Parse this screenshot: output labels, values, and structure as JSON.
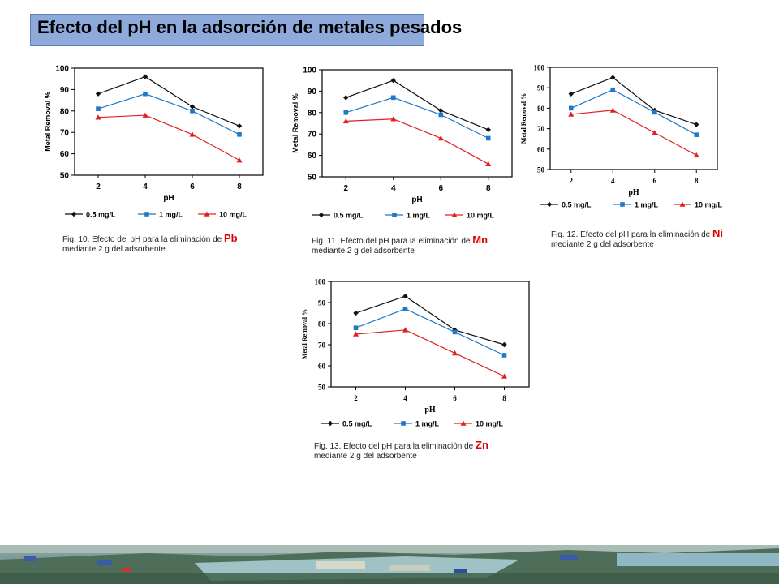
{
  "slide": {
    "title": "Efecto del pH en la adsorción de metales pesados"
  },
  "captions": [
    {
      "prefix": "Fig. 10. Efecto del pH para la eliminación de ",
      "metal": "Pb",
      "line2": "mediante 2 g del adsorbente"
    },
    {
      "prefix": "Fig. 11. Efecto del pH para la eliminación de ",
      "metal": "Mn",
      "line2": "mediante 2 g del adsorbente"
    },
    {
      "prefix": "Fig. 12. Efecto del pH para la eliminación de ",
      "metal": "Ni",
      "line2": "mediante 2 g del adsorbente"
    },
    {
      "prefix": "Fig. 13. Efecto del pH para la eliminación de ",
      "metal": "Zn",
      "line2": "mediante 2 g del adsorbente"
    }
  ],
  "colors": {
    "black_series": "#111111",
    "blue_series": "#1f78c8",
    "red_series": "#e02020",
    "metal_label": "#e00000",
    "title_box": "#8eaadb"
  },
  "chart_data": [
    {
      "type": "line",
      "xlabel": "pH",
      "ylabel": "Metal Removal %",
      "x": [
        2,
        4,
        6,
        8
      ],
      "ylim": [
        50,
        100
      ],
      "yticks": [
        50,
        60,
        70,
        80,
        90,
        100
      ],
      "series": [
        {
          "name": "0.5 mg/L",
          "values": [
            88,
            96,
            82,
            73
          ]
        },
        {
          "name": "1 mg/L",
          "values": [
            81,
            88,
            80,
            69
          ]
        },
        {
          "name": "10 mg/L",
          "values": [
            77,
            78,
            69,
            57
          ]
        }
      ]
    },
    {
      "type": "line",
      "xlabel": "pH",
      "ylabel": "Metal Removal %",
      "x": [
        2,
        4,
        6,
        8
      ],
      "ylim": [
        50,
        100
      ],
      "yticks": [
        50,
        60,
        70,
        80,
        90,
        100
      ],
      "series": [
        {
          "name": "0.5 mg/L",
          "values": [
            87,
            95,
            81,
            72
          ]
        },
        {
          "name": "1 mg/L",
          "values": [
            80,
            87,
            79,
            68
          ]
        },
        {
          "name": "10 mg/L",
          "values": [
            76,
            77,
            68,
            56
          ]
        }
      ]
    },
    {
      "type": "line",
      "xlabel": "pH",
      "ylabel": "Metal Removal %",
      "x": [
        2,
        4,
        6,
        8
      ],
      "ylim": [
        50,
        100
      ],
      "yticks": [
        50,
        60,
        70,
        80,
        90,
        100
      ],
      "series": [
        {
          "name": "0.5 mg/L",
          "values": [
            87,
            95,
            79,
            72
          ]
        },
        {
          "name": "1 mg/L",
          "values": [
            80,
            89,
            78,
            67
          ]
        },
        {
          "name": "10 mg/L",
          "values": [
            77,
            79,
            68,
            57
          ]
        }
      ]
    },
    {
      "type": "line",
      "xlabel": "pH",
      "ylabel": "Metal Removal %",
      "x": [
        2,
        4,
        6,
        8
      ],
      "ylim": [
        50,
        100
      ],
      "yticks": [
        50,
        60,
        70,
        80,
        90,
        100
      ],
      "series": [
        {
          "name": "0.5 mg/L",
          "values": [
            85,
            93,
            77,
            70
          ]
        },
        {
          "name": "1 mg/L",
          "values": [
            78,
            87,
            76,
            65
          ]
        },
        {
          "name": "10 mg/L",
          "values": [
            75,
            77,
            66,
            55
          ]
        }
      ]
    }
  ]
}
